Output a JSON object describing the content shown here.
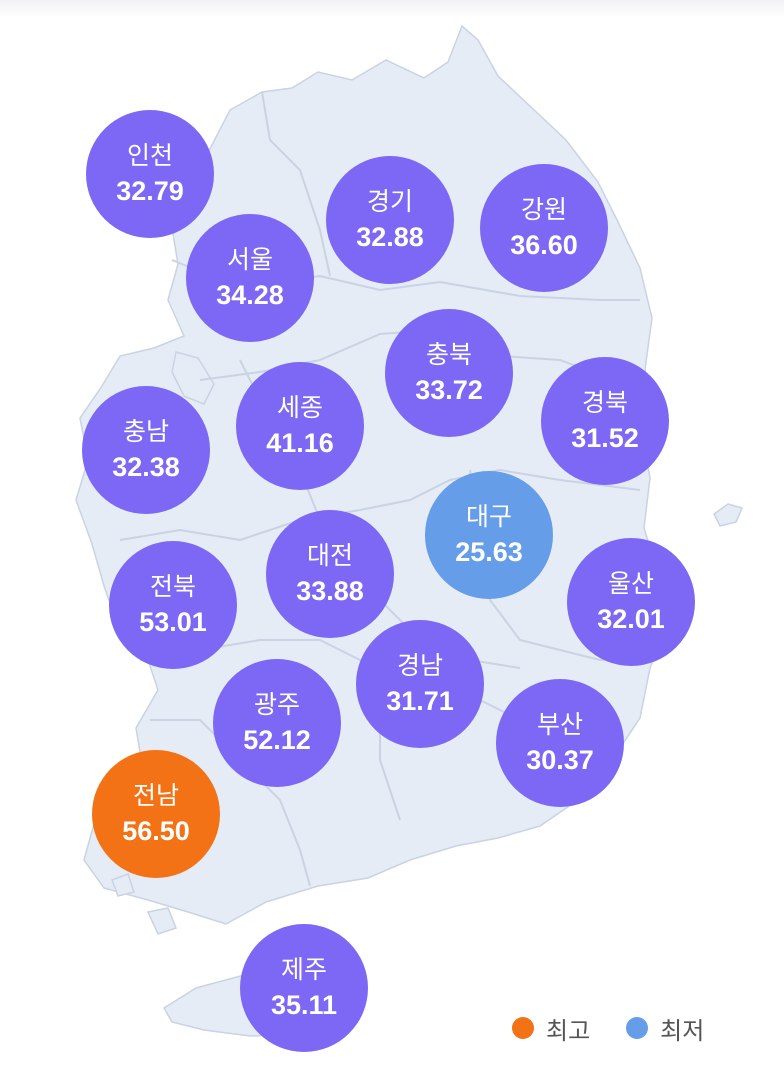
{
  "colors": {
    "default": "#7c68f4",
    "highest": "#f37215",
    "lowest": "#659de9",
    "land": "#e6ecf5",
    "border": "#c9d3e3"
  },
  "regions": [
    {
      "id": "incheon",
      "name": "인천",
      "value": "32.79",
      "status": "default"
    },
    {
      "id": "seoul",
      "name": "서울",
      "value": "34.28",
      "status": "default"
    },
    {
      "id": "gyeonggi",
      "name": "경기",
      "value": "32.88",
      "status": "default"
    },
    {
      "id": "gangwon",
      "name": "강원",
      "value": "36.60",
      "status": "default"
    },
    {
      "id": "chungbuk",
      "name": "충북",
      "value": "33.72",
      "status": "default"
    },
    {
      "id": "sejong",
      "name": "세종",
      "value": "41.16",
      "status": "default"
    },
    {
      "id": "chungnam",
      "name": "충남",
      "value": "32.38",
      "status": "default"
    },
    {
      "id": "gyeongbuk",
      "name": "경북",
      "value": "31.52",
      "status": "default"
    },
    {
      "id": "daegu",
      "name": "대구",
      "value": "25.63",
      "status": "lowest"
    },
    {
      "id": "daejeon",
      "name": "대전",
      "value": "33.88",
      "status": "default"
    },
    {
      "id": "jeonbuk",
      "name": "전북",
      "value": "53.01",
      "status": "default"
    },
    {
      "id": "ulsan",
      "name": "울산",
      "value": "32.01",
      "status": "default"
    },
    {
      "id": "gyeongnam",
      "name": "경남",
      "value": "31.71",
      "status": "default"
    },
    {
      "id": "gwangju",
      "name": "광주",
      "value": "52.12",
      "status": "default"
    },
    {
      "id": "busan",
      "name": "부산",
      "value": "30.37",
      "status": "default"
    },
    {
      "id": "jeonnam",
      "name": "전남",
      "value": "56.50",
      "status": "highest"
    },
    {
      "id": "jeju",
      "name": "제주",
      "value": "35.11",
      "status": "default"
    }
  ],
  "legend": {
    "highest_label": "최고",
    "lowest_label": "최저"
  }
}
